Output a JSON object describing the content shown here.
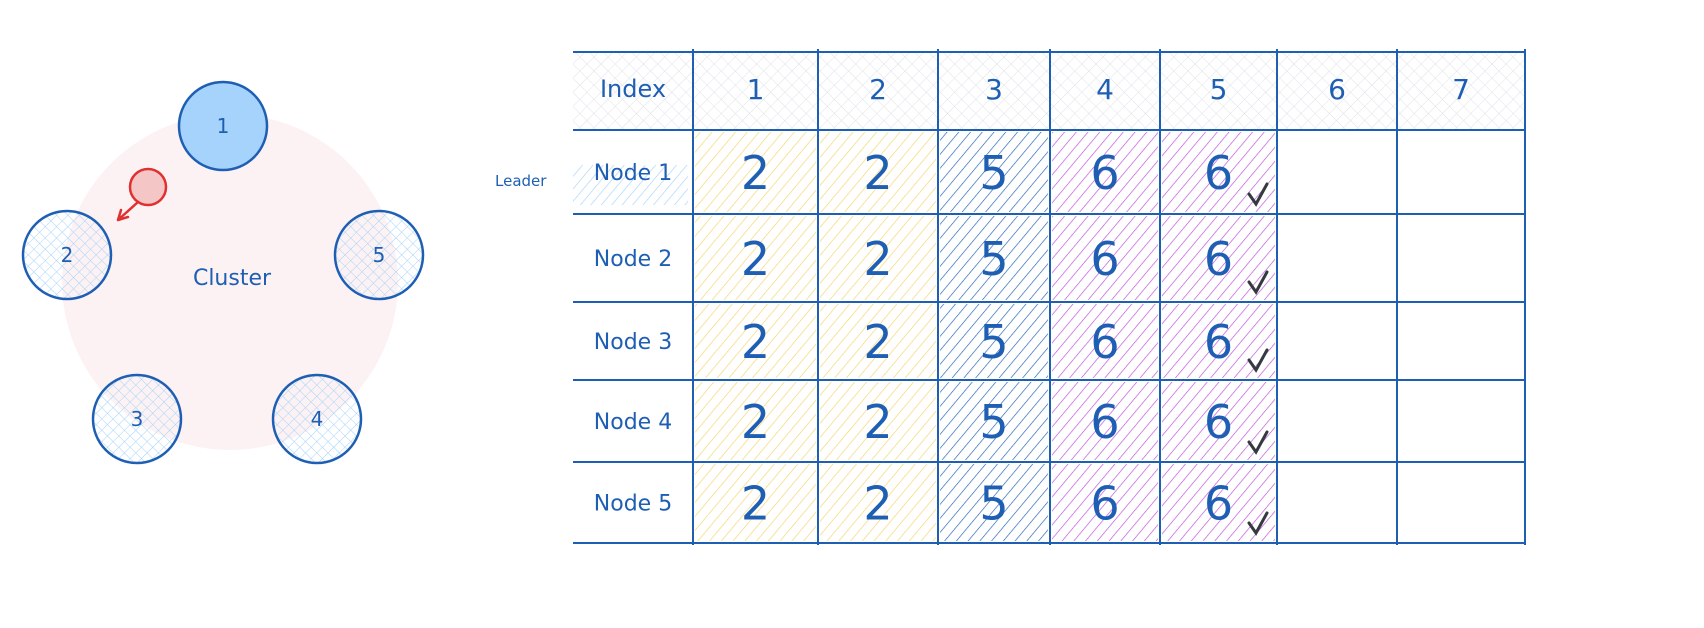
{
  "cluster": {
    "label": "Cluster",
    "nodes": [
      {
        "id": "1",
        "role": "leader"
      },
      {
        "id": "2"
      },
      {
        "id": "3"
      },
      {
        "id": "4"
      },
      {
        "id": "5"
      }
    ],
    "message_target": "2"
  },
  "table": {
    "header_label": "Index",
    "indices": [
      "1",
      "2",
      "3",
      "4",
      "5",
      "6",
      "7"
    ],
    "leader_label": "Leader",
    "rows": [
      {
        "label": "Node 1",
        "terms": [
          "2",
          "2",
          "5",
          "6",
          "6",
          "",
          ""
        ],
        "committed_index": 5
      },
      {
        "label": "Node 2",
        "terms": [
          "2",
          "2",
          "5",
          "6",
          "6",
          "",
          ""
        ],
        "committed_index": 5
      },
      {
        "label": "Node 3",
        "terms": [
          "2",
          "2",
          "5",
          "6",
          "6",
          "",
          ""
        ],
        "committed_index": 5
      },
      {
        "label": "Node 4",
        "terms": [
          "2",
          "2",
          "5",
          "6",
          "6",
          "",
          ""
        ],
        "committed_index": 5
      },
      {
        "label": "Node 5",
        "terms": [
          "2",
          "2",
          "5",
          "6",
          "6",
          "",
          ""
        ],
        "committed_index": 5
      }
    ],
    "check_icon": "checkmark-icon"
  },
  "colors": {
    "stroke": "#1e5fb4",
    "leader_fill": "#a5d3fb",
    "cluster_bg": "#fdf2f3",
    "message": "#e03131",
    "term2": "#f5d469",
    "term5": "#1e5fb4",
    "term6": "#be4bdb",
    "header_hatch": "#ced4da"
  }
}
